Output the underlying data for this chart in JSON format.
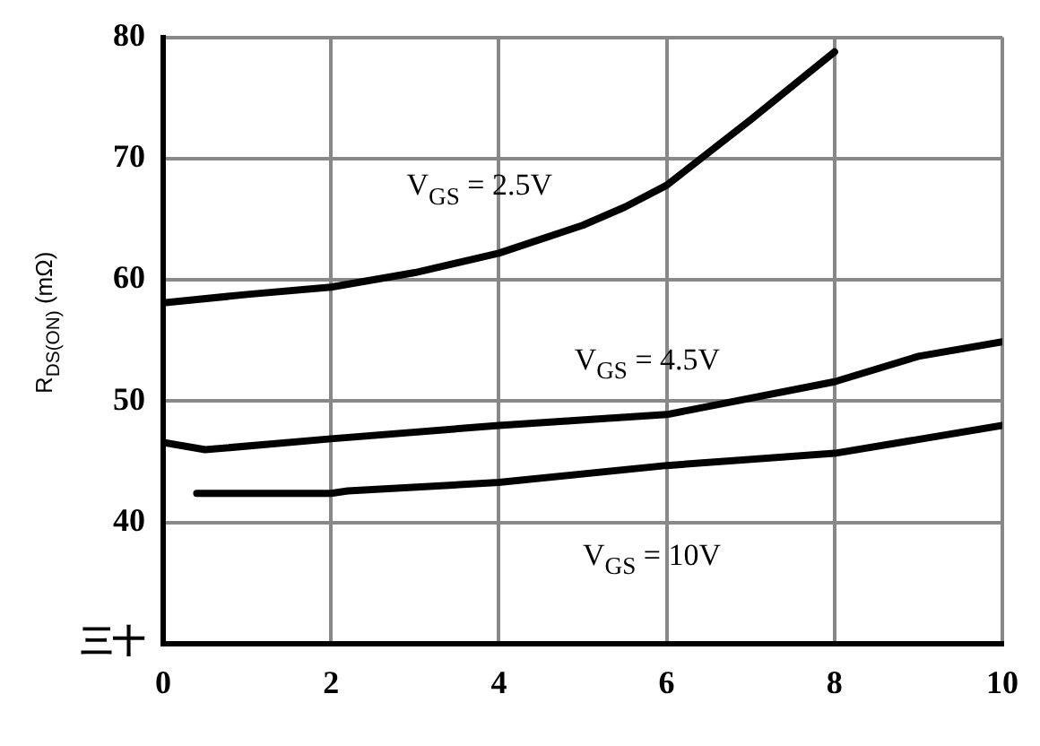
{
  "chart_data": {
    "type": "line",
    "ylabel": "R$_{DS(ON)}$ (mΩ)",
    "xlim": [
      0,
      10
    ],
    "xticks": [
      0,
      2,
      4,
      6,
      8,
      10
    ],
    "ylim": [
      30,
      80
    ],
    "yticks": [
      {
        "value": 30,
        "label": "三十"
      },
      40,
      50,
      60,
      70,
      80
    ],
    "grid": true,
    "legend": false,
    "marker": "none",
    "line_style": "solid",
    "series": [
      {
        "name": "V$_{GS}$ = 2.5V",
        "color": "#000000",
        "x": [
          0,
          1,
          2,
          3,
          4,
          5,
          5.5,
          6,
          7,
          8
        ],
        "values": [
          58.1,
          58.8,
          59.4,
          60.6,
          62.2,
          64.5,
          66,
          67.8,
          73.2,
          78.8
        ]
      },
      {
        "name": "V$_{GS}$ = 4.5V",
        "color": "#000000",
        "x": [
          0,
          0.5,
          2,
          4,
          6,
          8,
          9,
          10
        ],
        "values": [
          46.6,
          46,
          46.9,
          48,
          48.9,
          51.6,
          53.7,
          54.9
        ]
      },
      {
        "name": "V$_{GS}$ = 10V",
        "color": "#000000",
        "x": [
          0.4,
          2,
          2.2,
          4,
          6,
          8,
          10
        ],
        "values": [
          42.4,
          42.4,
          42.6,
          43.3,
          44.7,
          45.7,
          48
        ]
      }
    ]
  }
}
